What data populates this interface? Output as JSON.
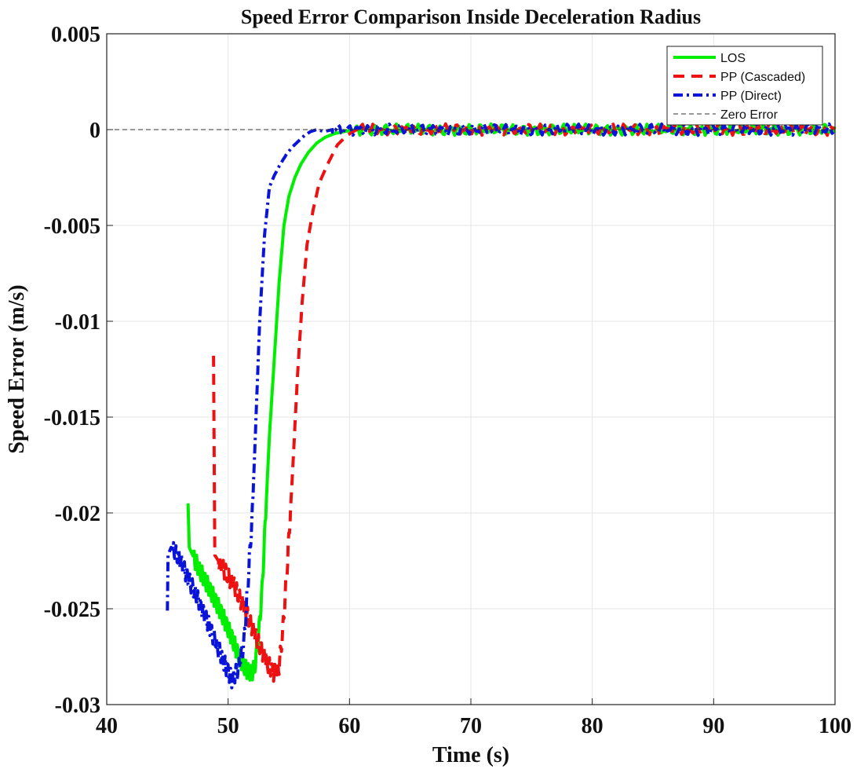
{
  "chart_data": {
    "type": "line",
    "title": "Speed Error Comparison Inside Deceleration Radius",
    "xlabel": "Time (s)",
    "ylabel": "Speed Error (m/s)",
    "xlim": [
      40,
      100
    ],
    "ylim": [
      -0.03,
      0.005
    ],
    "xticks": [
      40,
      50,
      60,
      70,
      80,
      90,
      100
    ],
    "xtick_labels": [
      "40",
      "50",
      "60",
      "70",
      "80",
      "90",
      "100"
    ],
    "yticks": [
      0.005,
      0,
      -0.005,
      -0.01,
      -0.015,
      -0.02,
      -0.025,
      -0.03
    ],
    "ytick_labels": [
      "0.005",
      "0",
      "-0.005",
      "-0.01",
      "-0.015",
      "-0.02",
      "-0.025",
      "-0.03"
    ],
    "grid": true,
    "legend_position": "top-right",
    "series": [
      {
        "name": "LOS",
        "color": "#00ee00",
        "style": "solid",
        "x": [
          46.7,
          46.8,
          47.5,
          48.5,
          49.5,
          50.3,
          50.9,
          51.4,
          51.9,
          52.2,
          52.5,
          52.8,
          53.1,
          53.4,
          53.8,
          54.2,
          54.6,
          55.0,
          55.5,
          56.0,
          56.6,
          57.3,
          58.0,
          58.8,
          59.6,
          60.5
        ],
        "y": [
          -0.0195,
          -0.0218,
          -0.0228,
          -0.024,
          -0.0253,
          -0.0265,
          -0.0275,
          -0.0281,
          -0.0284,
          -0.028,
          -0.0265,
          -0.024,
          -0.02,
          -0.016,
          -0.012,
          -0.008,
          -0.005,
          -0.0035,
          -0.0025,
          -0.0018,
          -0.0012,
          -0.0007,
          -0.0004,
          -0.0002,
          -0.0001,
          0.0
        ]
      },
      {
        "name": "PP (Cascaded)",
        "color": "#ee1111",
        "style": "dashed",
        "x": [
          48.8,
          48.9,
          49.5,
          50.5,
          51.5,
          52.5,
          53.2,
          53.8,
          54.2,
          54.5,
          54.9,
          55.3,
          55.7,
          56.1,
          56.5,
          57.0,
          57.5,
          58.2,
          59.0,
          59.8,
          60.6
        ],
        "y": [
          -0.0118,
          -0.0222,
          -0.0228,
          -0.0238,
          -0.0252,
          -0.0268,
          -0.0278,
          -0.0284,
          -0.028,
          -0.0262,
          -0.0225,
          -0.018,
          -0.013,
          -0.009,
          -0.006,
          -0.0042,
          -0.0028,
          -0.0018,
          -0.0008,
          -0.0003,
          0.0
        ]
      },
      {
        "name": "PP (Direct)",
        "color": "#0a14d8",
        "style": "dashdot",
        "x": [
          45.0,
          45.05,
          45.3,
          46.0,
          47.0,
          48.0,
          49.0,
          49.8,
          50.3,
          50.8,
          51.3,
          51.6,
          52.0,
          52.3,
          52.6,
          53.0,
          53.4,
          53.8,
          54.3,
          54.8,
          55.3,
          55.8,
          56.3,
          56.8,
          57.3,
          57.9,
          58.6
        ],
        "y": [
          -0.0251,
          -0.0222,
          -0.0218,
          -0.0224,
          -0.0238,
          -0.0252,
          -0.0268,
          -0.028,
          -0.0287,
          -0.0282,
          -0.0268,
          -0.024,
          -0.02,
          -0.015,
          -0.01,
          -0.0055,
          -0.003,
          -0.0024,
          -0.0018,
          -0.0013,
          -0.0009,
          -0.0006,
          -0.0003,
          -0.0001,
          0.0,
          -0.0001,
          0.0
        ]
      },
      {
        "name": "Zero Error",
        "color": "#333333",
        "style": "thin-dashed",
        "x": [
          40,
          100
        ],
        "y": [
          0,
          0
        ]
      }
    ],
    "noise_amplitude": 0.0003
  }
}
